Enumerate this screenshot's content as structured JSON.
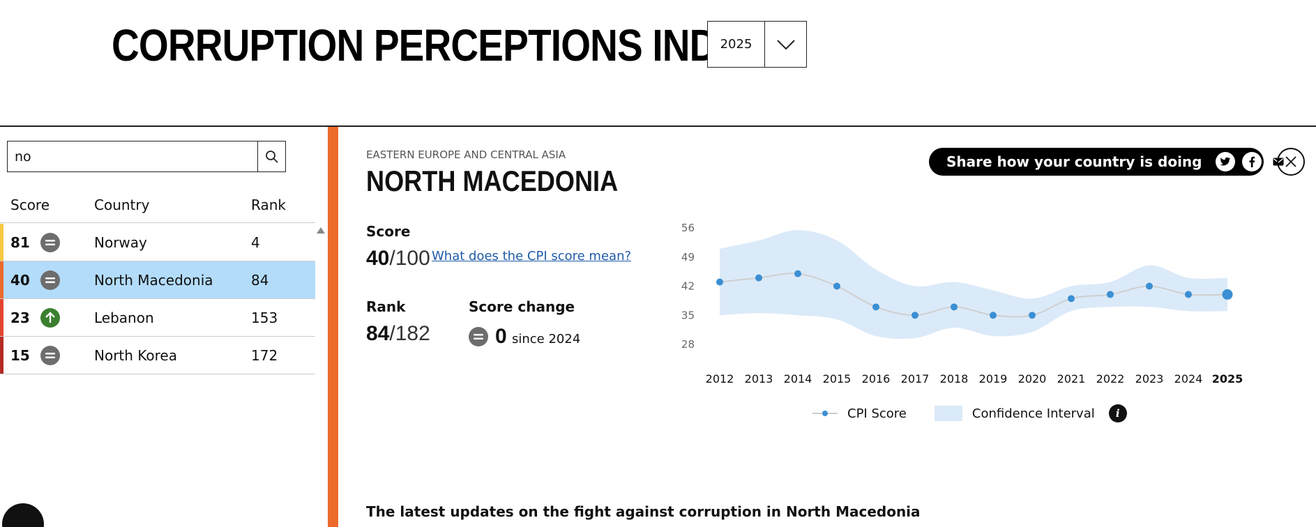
{
  "header": {
    "title": "CORRUPTION PERCEPTIONS INDEX",
    "year_selected": "2025"
  },
  "search": {
    "value": "no"
  },
  "table": {
    "headers": {
      "score": "Score",
      "country": "Country",
      "rank": "Rank"
    },
    "rows": [
      {
        "score": "81",
        "country": "Norway",
        "rank": "4",
        "trend": "equal",
        "bar_color": "#f6c843",
        "trend_color": "#6d6d6d",
        "selected": false
      },
      {
        "score": "40",
        "country": "North Macedonia",
        "rank": "84",
        "trend": "equal",
        "bar_color": "#ec6a2c",
        "trend_color": "#6d6d6d",
        "selected": true
      },
      {
        "score": "23",
        "country": "Lebanon",
        "rank": "153",
        "trend": "up",
        "bar_color": "#e2452d",
        "trend_color": "#3b7f2f",
        "selected": false
      },
      {
        "score": "15",
        "country": "North Korea",
        "rank": "172",
        "trend": "equal",
        "bar_color": "#b52a25",
        "trend_color": "#6d6d6d",
        "selected": false
      }
    ]
  },
  "detail": {
    "region": "EASTERN EUROPE AND CENTRAL ASIA",
    "country": "NORTH MACEDONIA",
    "share_text": "Share how your country is doing",
    "score_label": "Score",
    "score_value": "40",
    "score_denominator": "/100",
    "cpi_link": "What does the CPI score mean?",
    "rank_label": "Rank",
    "rank_value": "84",
    "rank_denominator": "/182",
    "change_label": "Score change",
    "change_value": "0",
    "change_since": "since 2024",
    "updates_title": "The latest updates on the fight against corruption in North Macedonia"
  },
  "legend": {
    "cpi": "CPI Score",
    "ci": "Confidence Interval"
  },
  "colors": {
    "accent_orange": "#ec6a2c",
    "selected_row": "#b3dcfb",
    "point": "#3a8fd4",
    "ci_band": "#dbeaf8",
    "link": "#1f5aa8"
  },
  "chart_data": {
    "type": "line",
    "x": [
      "2012",
      "2013",
      "2014",
      "2015",
      "2016",
      "2017",
      "2018",
      "2019",
      "2020",
      "2021",
      "2022",
      "2023",
      "2024",
      "2025"
    ],
    "series": [
      {
        "name": "CPI Score",
        "values": [
          43,
          44,
          45,
          42,
          37,
          35,
          37,
          35,
          35,
          39,
          40,
          42,
          40,
          40
        ]
      }
    ],
    "confidence_interval": {
      "lower": [
        35,
        35.5,
        35,
        34,
        30,
        29.5,
        32,
        30,
        31,
        36,
        37,
        37,
        36,
        36
      ],
      "upper": [
        51,
        53,
        55.5,
        53,
        46,
        42,
        43,
        41,
        39,
        42,
        43,
        47,
        44,
        44
      ]
    },
    "y_ticks": [
      28,
      35,
      42,
      49,
      56
    ],
    "ylim": [
      28,
      56
    ],
    "highlight_year": "2025"
  }
}
